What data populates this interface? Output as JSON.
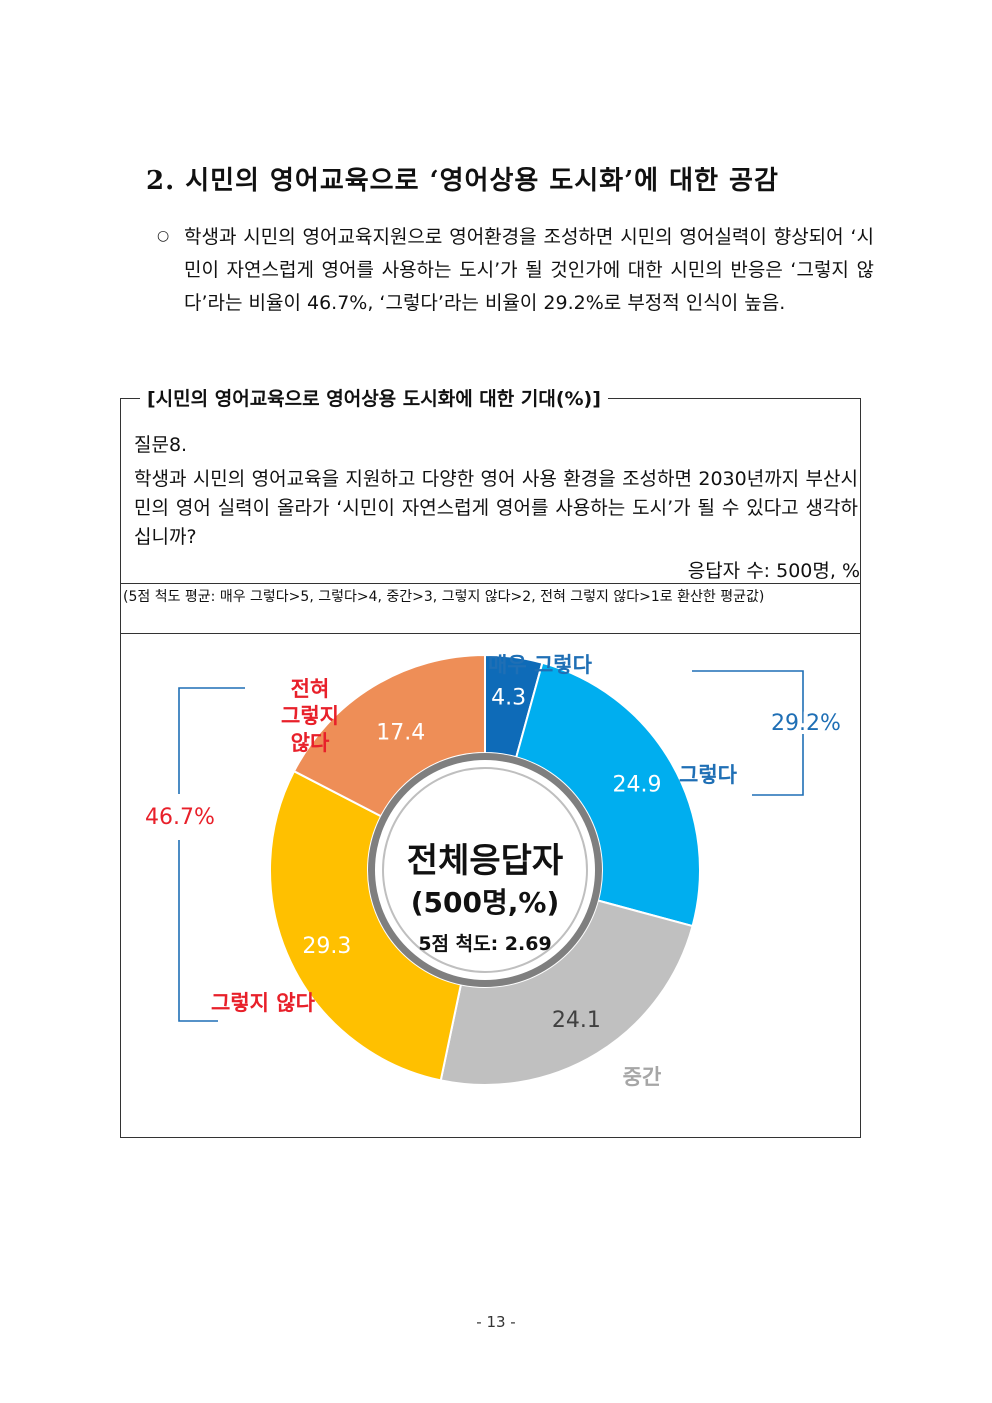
{
  "section": {
    "title": "2. 시민의 영어교육으로 ‘영어상용 도시화’에 대한 공감",
    "bullet": "○",
    "summary": "학생과 시민의 영어교육지원으로 영어환경을 조성하면 시민의 영어실력이 향상되어 ‘시민이 자연스럽게 영어를 사용하는 도시’가 될 것인가에 대한 시민의 반응은 ‘그렇지 않다’라는 비율이 46.7%, ‘그렇다’라는 비율이 29.2%로 부정적 인식이 높음."
  },
  "box": {
    "legend": "[시민의 영어교육으로 영어상용 도시화에 대한 기대(%)]",
    "question_number": "질문8.",
    "question_text": "학생과 시민의 영어교육을 지원하고 다양한 영어 사용 환경을 조성하면 2030년까지 부산시민의 영어 실력이 올라가 ‘시민이 자연스럽게 영어를 사용하는 도시’가 될 수 있다고 생각하십니까?",
    "respondents": "응답자 수: 500명, %",
    "scale_note": "(5점 척도 평균: 매우 그렇다>5, 그렇다>4, 중간>3, 그렇지 않다>2, 전혀 그렇지 않다>1로 환산한 평균값)"
  },
  "chart_data": {
    "type": "pie",
    "categories": [
      "매우 그렇다",
      "그렇다",
      "중간",
      "그렇지 않다",
      "전혀 그렇지 않다"
    ],
    "category_labels": [
      "매우 그렇다",
      "그렇다",
      "중간",
      "그렇지 않다",
      "전혀\n그렇지\n않다"
    ],
    "values": [
      4.3,
      24.9,
      24.1,
      29.3,
      17.4
    ],
    "value_labels": [
      "4.3",
      "24.9",
      "24.1",
      "29.3",
      "17.4"
    ],
    "colors": [
      "#0e6bb8",
      "#00aeef",
      "#c0c0c0",
      "#ffc000",
      "#ee8e57"
    ],
    "label_colors": [
      "#1f6fb5",
      "#1f6fb5",
      "#a6a6a6",
      "#e8202a",
      "#e8202a"
    ],
    "value_label_colors": [
      "#ffffff",
      "#ffffff",
      "#404040",
      "#ffffff",
      "#ffffff"
    ],
    "center_title": "전체응답자",
    "center_subtitle": "(500명,%)",
    "center_scale": "5점 척도: 2.69",
    "groups": [
      {
        "label": "29.2%",
        "color": "#1f6fb5"
      },
      {
        "label": "46.7%",
        "color": "#e8202a"
      }
    ]
  },
  "page_number": "- 13 -"
}
